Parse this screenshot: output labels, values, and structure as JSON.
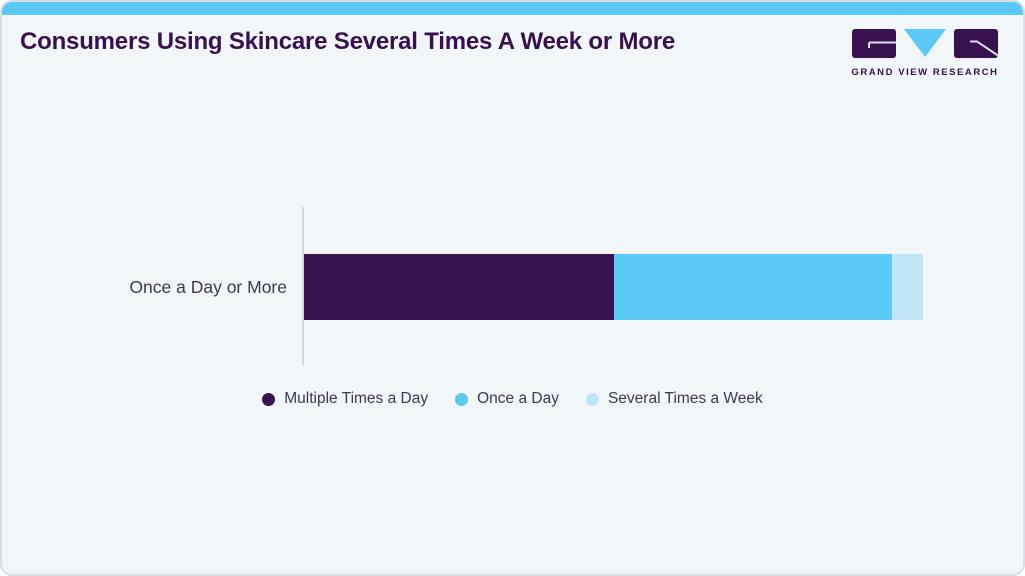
{
  "header": {
    "title": "Consumers Using Skincare Several Times A Week or More",
    "logo_text": "GRAND VIEW RESEARCH"
  },
  "colors": {
    "accent": "#5bc8f5",
    "brand_purple": "#38104e",
    "card_bg": "#f1f6f9",
    "card_border": "#d8dfe5",
    "axis_line": "#d3d7dc",
    "label_color": "#3e3a4b"
  },
  "chart_data": {
    "type": "bar",
    "orientation": "horizontal",
    "stacked": true,
    "title": "Consumers Using Skincare Several Times A Week or More",
    "categories": [
      "Once a Day or More"
    ],
    "series": [
      {
        "name": "Multiple Times a Day",
        "values": [
          50
        ],
        "color": "#38114f"
      },
      {
        "name": "Once a Day",
        "values": [
          45
        ],
        "color": "#5bc8f5"
      },
      {
        "name": "Several Times a Week",
        "values": [
          5
        ],
        "color": "#bfe5f7"
      }
    ],
    "unit": "percent",
    "xlim": [
      0,
      100
    ],
    "grid": false,
    "legend_position": "bottom"
  }
}
